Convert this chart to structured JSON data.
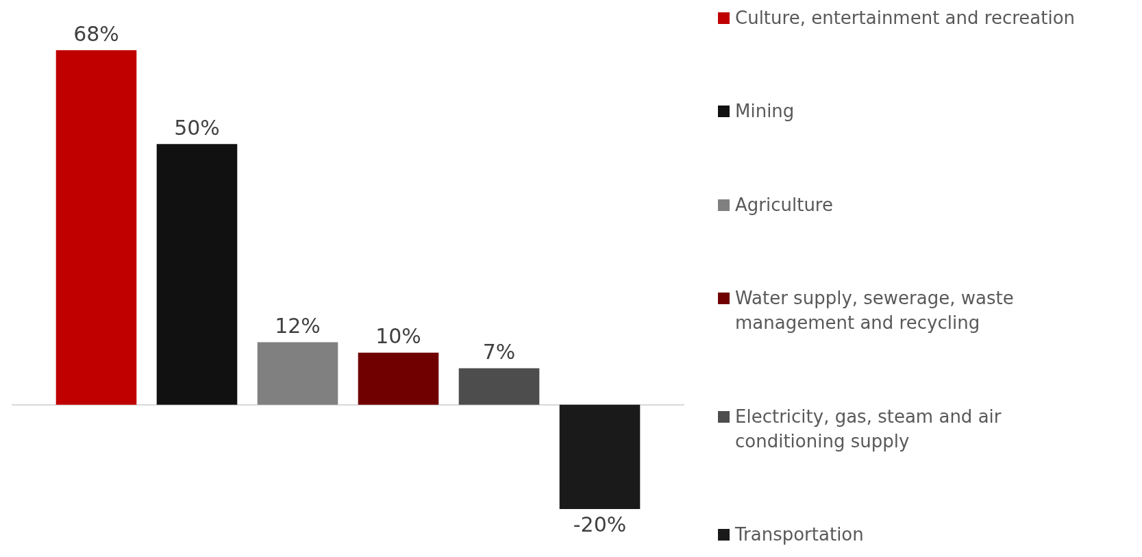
{
  "chart_data": {
    "type": "bar",
    "categories": [
      null
    ],
    "series": [
      {
        "name": "Culture, entertainment and recreation",
        "color": "#c00000",
        "values": [
          68
        ],
        "value_labels": [
          "68%"
        ]
      },
      {
        "name": "Mining",
        "color": "#111111",
        "values": [
          50
        ],
        "value_labels": [
          "50%"
        ]
      },
      {
        "name": "Agriculture",
        "color": "#808080",
        "values": [
          12
        ],
        "value_labels": [
          "12%"
        ]
      },
      {
        "name": "Water supply, sewerage, waste management and recycling",
        "color": "#700000",
        "values": [
          10
        ],
        "value_labels": [
          "10%"
        ]
      },
      {
        "name": "Electricity, gas, steam and air conditioning supply",
        "color": "#4d4d4d",
        "values": [
          7
        ],
        "value_labels": [
          "7%"
        ]
      },
      {
        "name": "Transportation",
        "color": "#1a1a1a",
        "values": [
          -20
        ],
        "value_labels": [
          "-20%"
        ]
      }
    ],
    "legend": "right",
    "grid": false,
    "tick_labels": false
  }
}
